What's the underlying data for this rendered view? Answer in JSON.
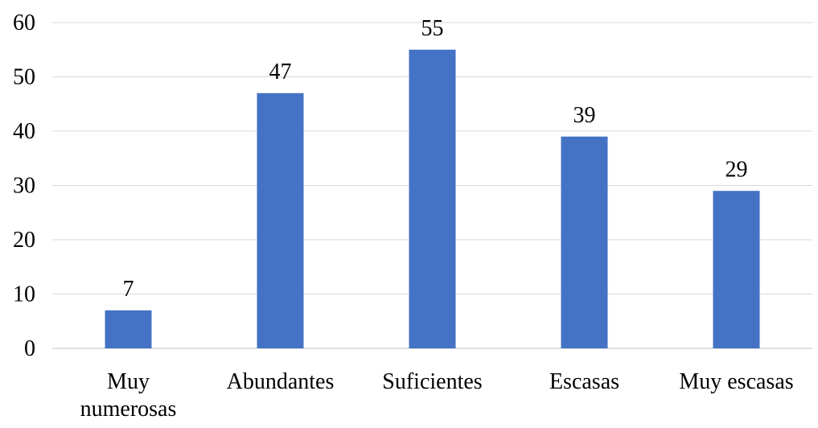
{
  "chart_data": {
    "type": "bar",
    "title": "",
    "xlabel": "",
    "ylabel": "",
    "categories": [
      [
        "Muy",
        "numerosas"
      ],
      [
        "Abundantes"
      ],
      [
        "Suficientes"
      ],
      [
        "Escasas"
      ],
      [
        "Muy escasas"
      ]
    ],
    "values": [
      7,
      47,
      55,
      39,
      29
    ],
    "ylim": [
      0,
      60
    ],
    "yticks": [
      0,
      10,
      20,
      30,
      40,
      50,
      60
    ],
    "grid": true,
    "legend": "none",
    "colors": {
      "bar": "#4472C4",
      "grid": "#d9d9d9",
      "text": "#000000"
    }
  }
}
